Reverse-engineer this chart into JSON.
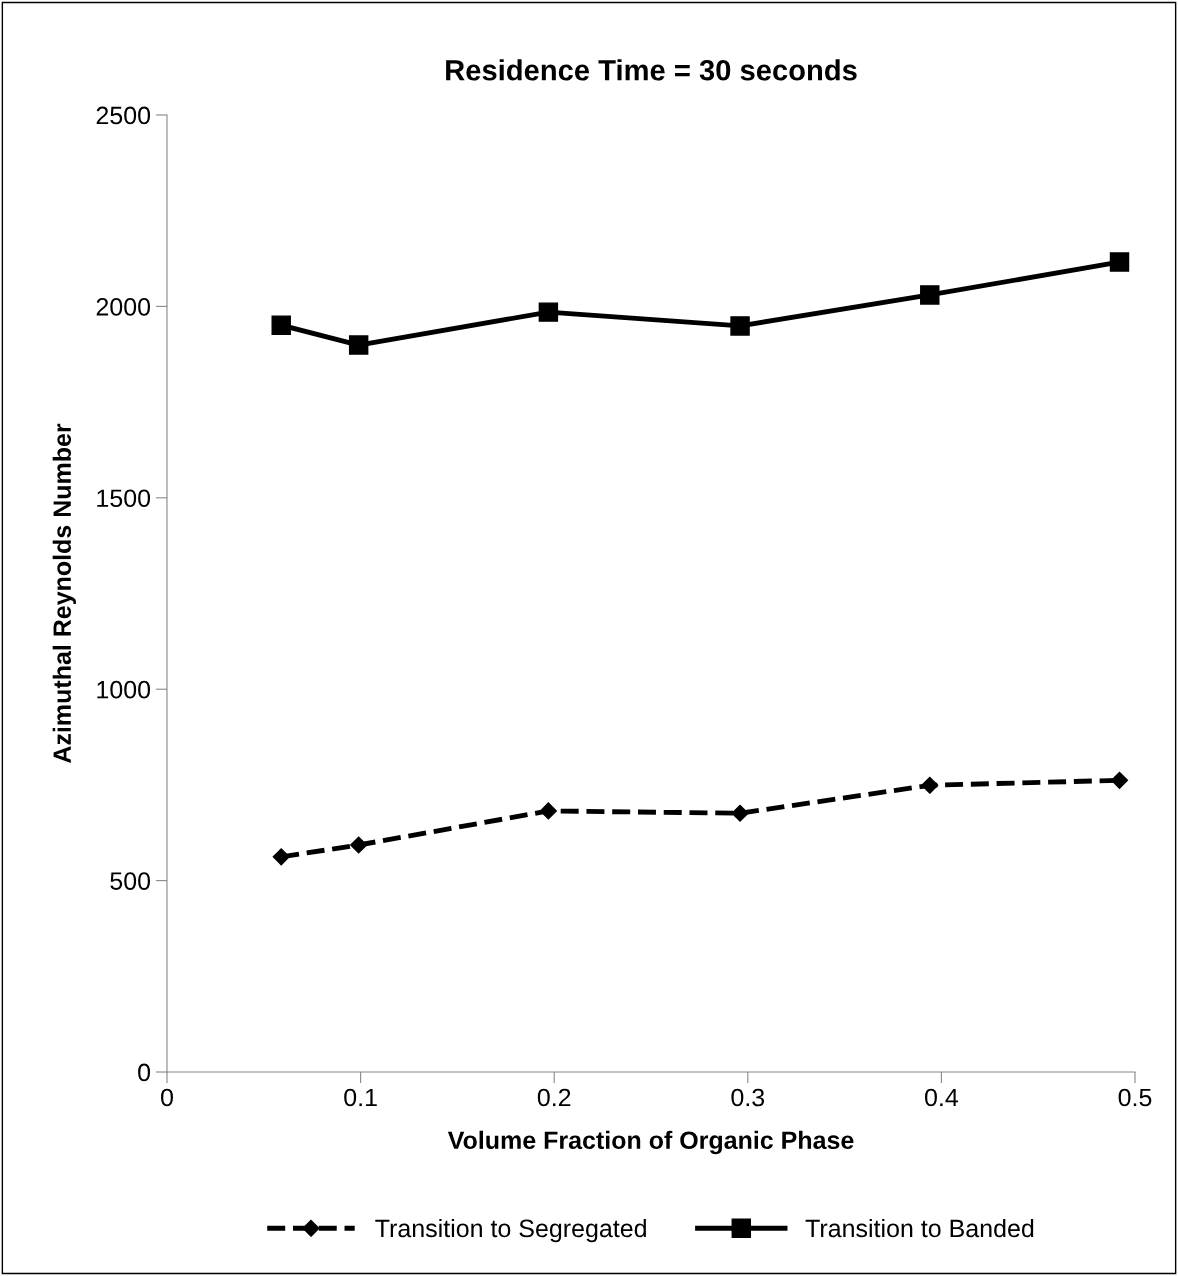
{
  "chart_data": {
    "type": "line",
    "title": "Residence Time = 30 seconds",
    "xlabel": "Volume Fraction of Organic Phase",
    "ylabel": "Azimuthal Reynolds Number",
    "series": [
      {
        "name": "Transition to Segregated",
        "color": "#000000",
        "marker": "diamond",
        "line_style": "dashed",
        "x": [
          0.059,
          0.099,
          0.197,
          0.296,
          0.394,
          0.492
        ],
        "values": [
          562,
          593,
          682,
          676,
          749,
          762
        ]
      },
      {
        "name": "Transition to Banded",
        "color": "#000000",
        "marker": "square",
        "line_style": "solid",
        "x": [
          0.059,
          0.099,
          0.197,
          0.296,
          0.394,
          0.492
        ],
        "values": [
          1951,
          1899,
          1985,
          1949,
          2030,
          2116
        ]
      }
    ],
    "xlim": [
      0,
      0.5
    ],
    "xticks": [
      0,
      0.1,
      0.2,
      0.3,
      0.4,
      0.5
    ],
    "ylim": [
      0,
      2500
    ],
    "yticks": [
      0,
      500,
      1000,
      1500,
      2000,
      2500
    ],
    "grid": false,
    "legend": "bottom"
  }
}
